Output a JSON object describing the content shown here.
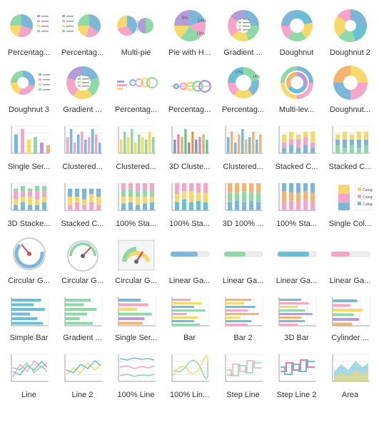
{
  "palette": {
    "c1": "#7eb6d9",
    "c2": "#f5a6c8",
    "c3": "#f7d96b",
    "c4": "#8fd9a8",
    "c5": "#b59cd9",
    "c6": "#f5b370",
    "c7": "#6bbfd4",
    "c8": "#e87aa4",
    "grid": "#d9d9d9",
    "axis": "#888888",
    "ring": "#cfcfcf",
    "needle": "#d94c4c",
    "text": "#333333"
  },
  "items": [
    {
      "id": "percentage-pie-1",
      "label": "Percentag...",
      "type": "pie-legend-right"
    },
    {
      "id": "percentage-pie-2",
      "label": "Percentag...",
      "type": "pie-legend-left"
    },
    {
      "id": "multi-pie",
      "label": "Multi-pie",
      "type": "multi-pie"
    },
    {
      "id": "pie-with-h",
      "label": "Pie with H...",
      "type": "pie-labeled"
    },
    {
      "id": "gradient-pie",
      "label": "Gradient ...",
      "type": "doughnut-legend-center"
    },
    {
      "id": "doughnut",
      "label": "Doughnut",
      "type": "doughnut"
    },
    {
      "id": "doughnut-2",
      "label": "Doughnut 2",
      "type": "doughnut-thick"
    },
    {
      "id": "doughnut-3",
      "label": "Doughnut 3",
      "type": "doughnut-gap"
    },
    {
      "id": "gradient-doughnut",
      "label": "Gradient ...",
      "type": "doughnut-legend-center-2"
    },
    {
      "id": "percentage-ring",
      "label": "Percentag...",
      "type": "ring-bars"
    },
    {
      "id": "percentage-ring-2",
      "label": "Percentag...",
      "type": "ring-bars-2"
    },
    {
      "id": "percentage-doughnut",
      "label": "Percentag...",
      "type": "doughnut-labeled"
    },
    {
      "id": "multi-level",
      "label": "Multi-lev...",
      "type": "multi-ring"
    },
    {
      "id": "doughnut-big",
      "label": "Doughnut...",
      "type": "doughnut-large"
    },
    {
      "id": "single-series",
      "label": "Single Ser...",
      "type": "bars-single"
    },
    {
      "id": "clustered-1",
      "label": "Clustered...",
      "type": "bars-clustered"
    },
    {
      "id": "clustered-2",
      "label": "Clustered...",
      "type": "bars-clustered-2"
    },
    {
      "id": "3d-clustered",
      "label": "3D Cluste...",
      "type": "bars-3d"
    },
    {
      "id": "clustered-3",
      "label": "Clustered...",
      "type": "bars-clustered-3"
    },
    {
      "id": "stacked-1",
      "label": "Stacked C...",
      "type": "bars-stacked"
    },
    {
      "id": "stacked-2",
      "label": "Stacked C...",
      "type": "bars-stacked-2"
    },
    {
      "id": "3d-stacked",
      "label": "3D Stacke...",
      "type": "bars-3d-stacked"
    },
    {
      "id": "stacked-3",
      "label": "Stacked C...",
      "type": "bars-stacked-3"
    },
    {
      "id": "100-stacked",
      "label": "100% Sta...",
      "type": "bars-100"
    },
    {
      "id": "100-stacked-2",
      "label": "100% Sta...",
      "type": "bars-100-2"
    },
    {
      "id": "3d-100",
      "label": "3D 100% ...",
      "type": "bars-100-3d"
    },
    {
      "id": "100-stacked-3",
      "label": "100% Sta...",
      "type": "bars-100-3"
    },
    {
      "id": "single-col",
      "label": "Single Col...",
      "type": "single-col-legend"
    },
    {
      "id": "circular-g-1",
      "label": "Circular G...",
      "type": "gauge-1"
    },
    {
      "id": "circular-g-2",
      "label": "Circular G...",
      "type": "gauge-2"
    },
    {
      "id": "circular-g-3",
      "label": "Circular G...",
      "type": "gauge-3"
    },
    {
      "id": "linear-g-1",
      "label": "Linear Ga...",
      "type": "linear-gauge"
    },
    {
      "id": "linear-g-2",
      "label": "Linear Ga...",
      "type": "linear-gauge-2"
    },
    {
      "id": "linear-g-3",
      "label": "Linear Ga...",
      "type": "linear-gauge-3"
    },
    {
      "id": "linear-g-4",
      "label": "Linear Ga...",
      "type": "linear-gauge-4"
    },
    {
      "id": "simple-bar",
      "label": "Simple Bar",
      "type": "hbar-simple"
    },
    {
      "id": "gradient-bar",
      "label": "Gradient ...",
      "type": "hbar-gradient"
    },
    {
      "id": "single-series-hbar",
      "label": "Single Ser...",
      "type": "hbar-single"
    },
    {
      "id": "bar",
      "label": "Bar",
      "type": "hbar-grouped"
    },
    {
      "id": "bar-2",
      "label": "Bar 2",
      "type": "hbar-grouped-2"
    },
    {
      "id": "3d-bar",
      "label": "3D Bar",
      "type": "hbar-3d"
    },
    {
      "id": "cylinder",
      "label": "Cylinder ...",
      "type": "hbar-cylinder"
    },
    {
      "id": "line",
      "label": "Line",
      "type": "line"
    },
    {
      "id": "line-2",
      "label": "Line 2",
      "type": "line-2"
    },
    {
      "id": "100-line",
      "label": "100% Line",
      "type": "line-100"
    },
    {
      "id": "100-line-2",
      "label": "100% Lin...",
      "type": "line-curve"
    },
    {
      "id": "step-line",
      "label": "Step Line",
      "type": "step-line"
    },
    {
      "id": "step-line-2",
      "label": "Step Line 2",
      "type": "step-line-2"
    },
    {
      "id": "area",
      "label": "Area",
      "type": "area"
    }
  ]
}
